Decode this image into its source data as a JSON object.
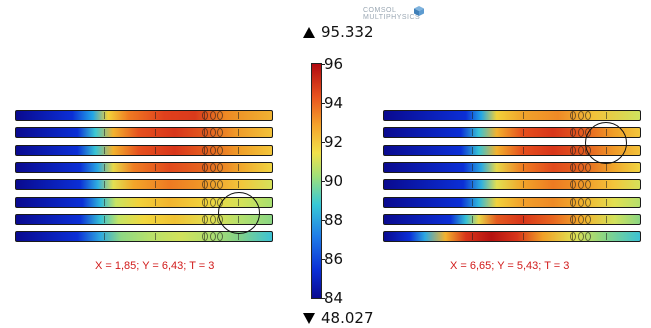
{
  "logo": {
    "text": "COMSOL MULTIPHYSICS"
  },
  "range": {
    "max": "95.332",
    "min": "48.027"
  },
  "colorbar": {
    "ticks": [
      "96",
      "94",
      "92",
      "90",
      "88",
      "86",
      "84"
    ]
  },
  "left_panel": {
    "caption": "X = 1,85; Y = 6,43; T = 3"
  },
  "right_panel": {
    "caption": "X = 6,65; Y = 5,43; T = 3"
  }
}
